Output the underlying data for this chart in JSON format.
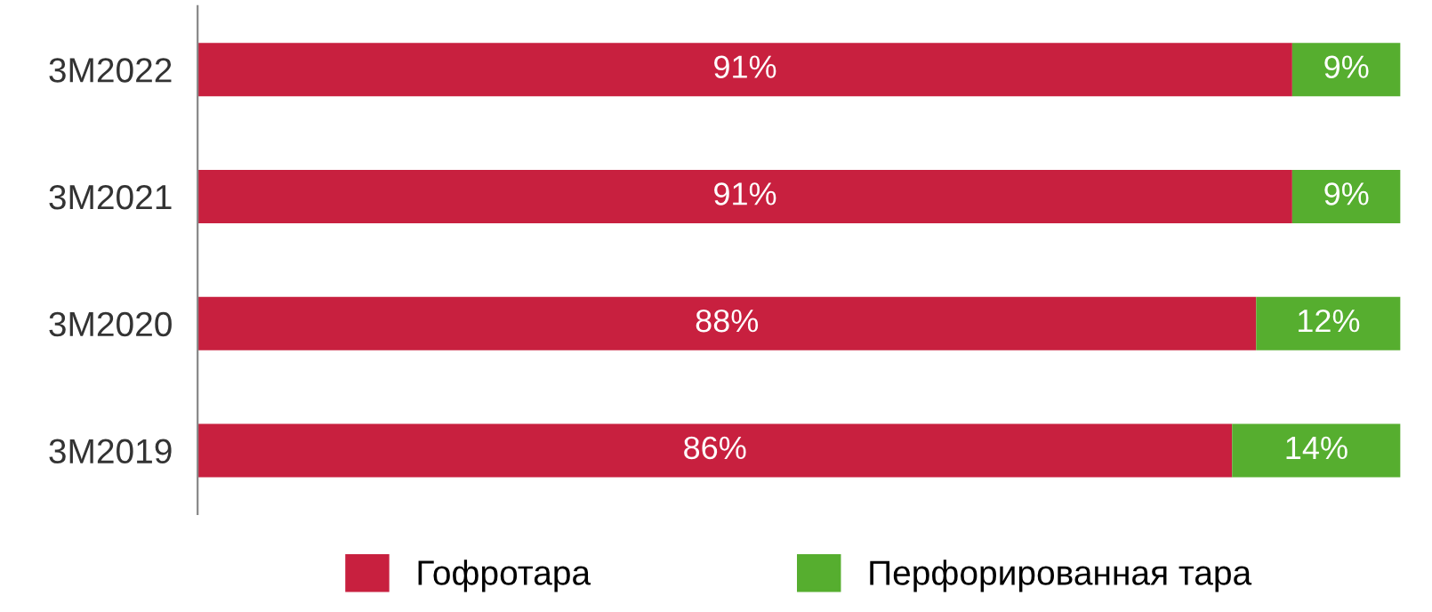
{
  "chart_data": {
    "type": "bar",
    "orientation": "horizontal",
    "stacked": true,
    "categories": [
      "3M2022",
      "3M2021",
      "3M2020",
      "3M2019"
    ],
    "series": [
      {
        "name": "Гофротара",
        "color": "#c8203f",
        "values": [
          91,
          91,
          88,
          86
        ],
        "value_labels": [
          "91%",
          "91%",
          "88%",
          "86%"
        ]
      },
      {
        "name": "Перфорированная тара",
        "color": "#56ae2f",
        "values": [
          9,
          9,
          12,
          14
        ],
        "value_labels": [
          "9%",
          "9%",
          "12%",
          "14%"
        ]
      }
    ],
    "xlim": [
      0,
      100
    ],
    "tick_labels": "y",
    "legend": "bottom",
    "grid": false
  }
}
